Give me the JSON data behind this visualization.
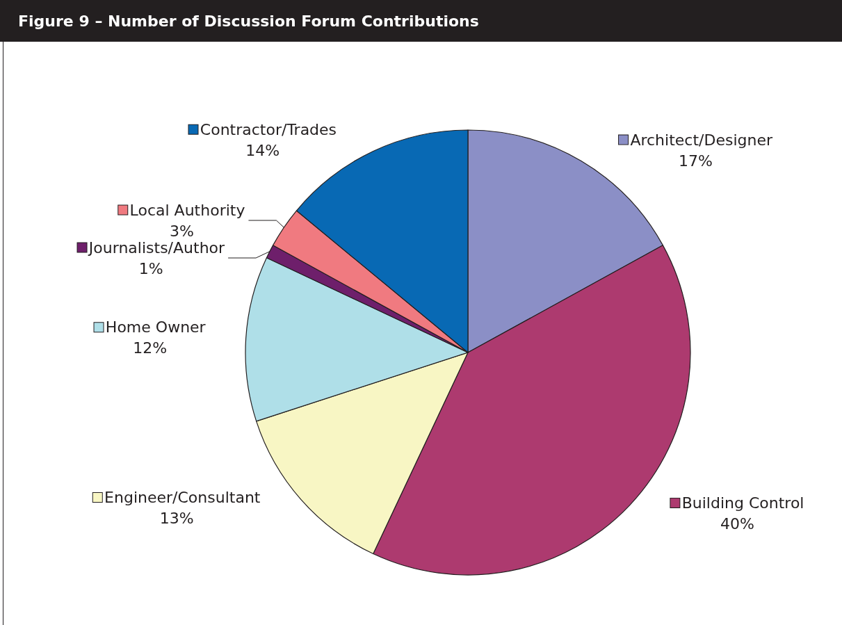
{
  "chart_data": {
    "type": "pie",
    "title": "Figure 9 – Number of Discussion Forum Contributions",
    "categories": [
      "Architect/Designer",
      "Building Control",
      "Engineer/Consultant",
      "Home Owner",
      "Journalists/Author",
      "Local Authority",
      "Contractor/Trades"
    ],
    "values": [
      17,
      40,
      13,
      12,
      1,
      3,
      14
    ],
    "colors": [
      "#8b8fc6",
      "#ad3a6f",
      "#f8f6c4",
      "#afdfe8",
      "#6e1f6b",
      "#f07a80",
      "#0869b4"
    ],
    "value_labels": [
      "17%",
      "40%",
      "13%",
      "12%",
      "1%",
      "3%",
      "14%"
    ],
    "legend": "left"
  }
}
